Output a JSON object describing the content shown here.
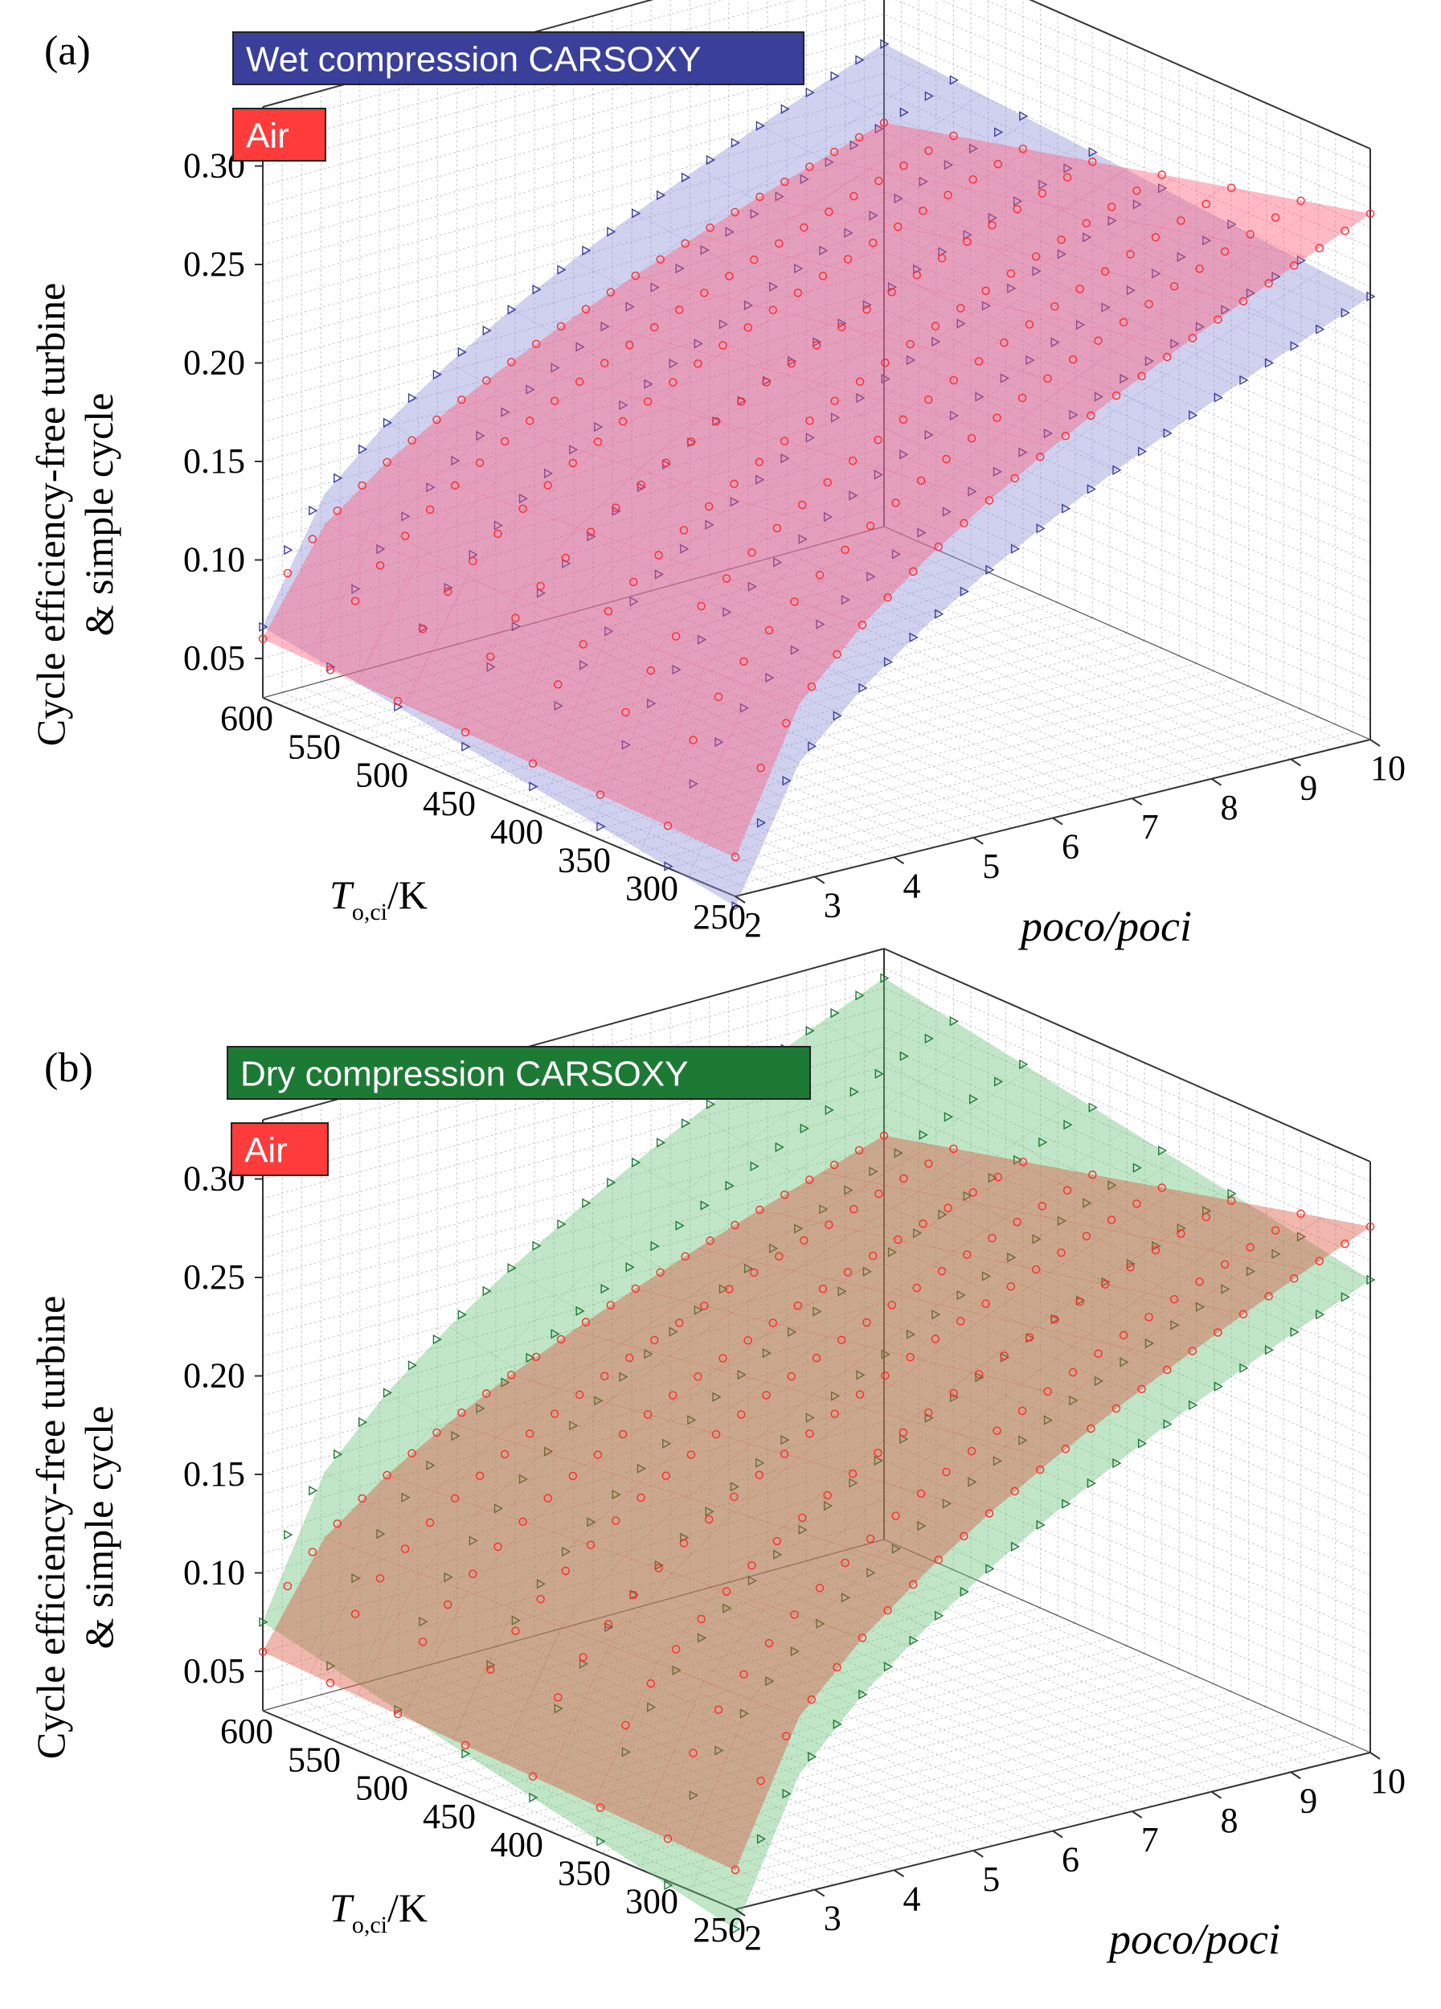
{
  "chart_data": [
    {
      "panel_label": "(a)",
      "type": "surface3d",
      "ylabel_lines": [
        "Cycle efficiency-free turbine",
        "& simple cycle"
      ],
      "xlabel_main": "T",
      "xlabel_sub": "o,ci",
      "xlabel_unit": "/K",
      "plabel": "poco/poci",
      "z_ticks": [
        "0.05",
        "0.10",
        "0.15",
        "0.20",
        "0.25",
        "0.30"
      ],
      "t_ticks": [
        "600",
        "550",
        "500",
        "450",
        "400",
        "350",
        "300",
        "250"
      ],
      "p_ticks": [
        "2",
        "3",
        "4",
        "5",
        "6",
        "7",
        "8",
        "9",
        "10"
      ],
      "zlim": [
        0.03,
        0.33
      ],
      "t_range": [
        250,
        600
      ],
      "p_range": [
        2,
        10
      ],
      "series": [
        {
          "name": "Wet compression CARSOXY",
          "color": "#3a3f99",
          "surface_color": "#8f8fd9",
          "marker": "triangle",
          "efficiency": {
            "corner_p2_t600": 0.066,
            "corner_p2_t250": 0.025,
            "corner_p10_t600": 0.275,
            "corner_p10_t250": 0.255
          }
        },
        {
          "name": "Air",
          "color": "#ff2a2a",
          "surface_color": "#ff5a78",
          "marker": "circle",
          "efficiency": {
            "corner_p2_t600": 0.06,
            "corner_p2_t250": 0.05,
            "corner_p10_t600": 0.235,
            "corner_p10_t250": 0.297
          }
        }
      ]
    },
    {
      "panel_label": "(b)",
      "type": "surface3d",
      "ylabel_lines": [
        "Cycle efficiency-free turbine",
        "& simple cycle"
      ],
      "xlabel_main": "T",
      "xlabel_sub": "o,ci",
      "xlabel_unit": "/K",
      "plabel": "poco/poci",
      "z_ticks": [
        "0.05",
        "0.10",
        "0.15",
        "0.20",
        "0.25",
        "0.30"
      ],
      "t_ticks": [
        "600",
        "550",
        "500",
        "450",
        "400",
        "350",
        "300",
        "250"
      ],
      "p_ticks": [
        "2",
        "3",
        "4",
        "5",
        "6",
        "7",
        "8",
        "9",
        "10"
      ],
      "zlim": [
        0.03,
        0.33
      ],
      "t_range": [
        250,
        600
      ],
      "p_range": [
        2,
        10
      ],
      "series": [
        {
          "name": "Dry compression CARSOXY",
          "color": "#1d7a35",
          "surface_color": "#6cc07a",
          "marker": "triangle",
          "efficiency": {
            "corner_p2_t600": 0.075,
            "corner_p2_t250": 0.02,
            "corner_p10_t600": 0.315,
            "corner_p10_t250": 0.27
          }
        },
        {
          "name": "Air",
          "color": "#ff2a2a",
          "surface_color": "#d9533f",
          "marker": "circle",
          "efficiency": {
            "corner_p2_t600": 0.06,
            "corner_p2_t250": 0.05,
            "corner_p10_t600": 0.235,
            "corner_p10_t250": 0.297
          }
        }
      ]
    }
  ]
}
